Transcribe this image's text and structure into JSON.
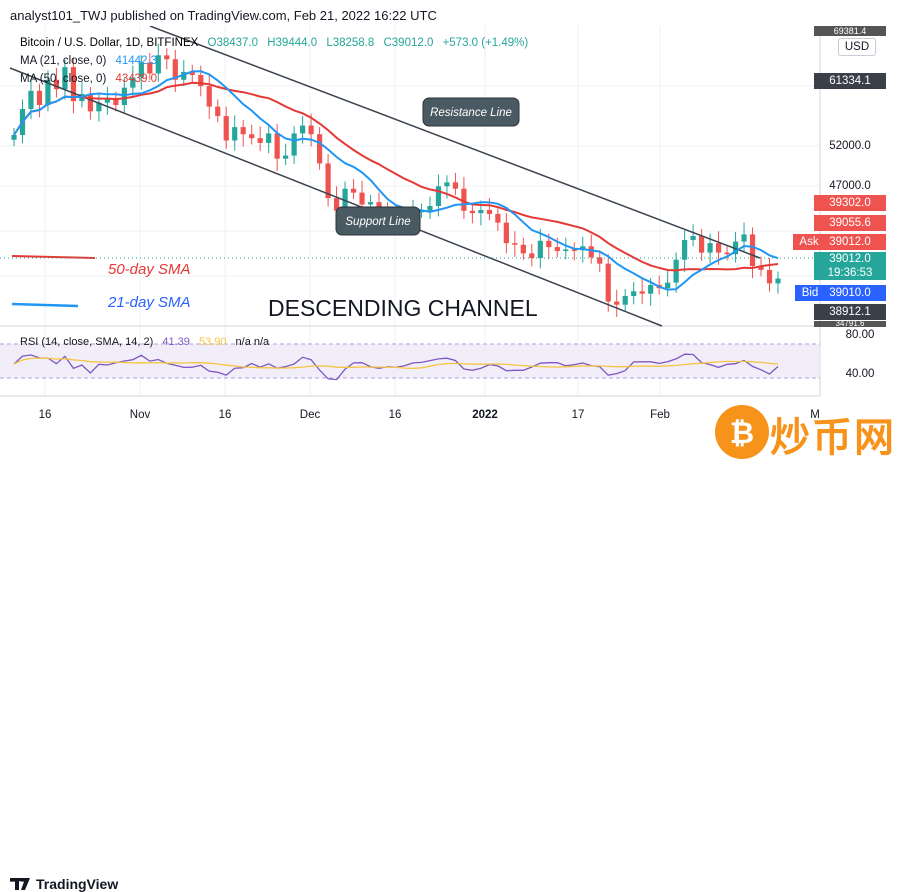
{
  "header": {
    "publisher": "analyst101_TWJ published on TradingView.com, Feb 21, 2022 16:22 UTC"
  },
  "legend": {
    "symbol": "Bitcoin / U.S. Dollar, 1D, BITFINEX",
    "open": "O38437.0",
    "high": "H39444.0",
    "low": "L38258.8",
    "close": "C39012.0",
    "change": "+573.0 (+1.49%)",
    "ma21_label": "MA (21, close, 0)",
    "ma21_value": "41442.3",
    "ma50_label": "MA (50, close, 0)",
    "ma50_value": "43439.0"
  },
  "price_axis": {
    "currency_button": "USD",
    "top_partial": "69381.4",
    "labels": [
      "61334.1",
      "52000.0",
      "47000.0",
      "39302.0",
      "39055.6",
      "39012.0",
      "39012.0",
      "19:36:53",
      "39010.0",
      "38912.1"
    ],
    "ask": "Ask",
    "bid": "Bid",
    "bottom_partial": "34791.6"
  },
  "annotations": {
    "resistance": "Resistance Line",
    "support": "Support Line",
    "sma50": "50-day SMA",
    "sma21": "21-day SMA",
    "channel": "DESCENDING CHANNEL"
  },
  "rsi": {
    "label": "RSI (14, close, SMA, 14, 2)",
    "value1": "41.39",
    "value2": "53.90",
    "na": "n/a n/a",
    "axis": [
      "80.00",
      "40.00"
    ]
  },
  "time_axis": [
    "16",
    "Nov",
    "16",
    "Dec",
    "16",
    "2022",
    "17",
    "Feb",
    "M"
  ],
  "footer": {
    "brand": "TradingView"
  },
  "watermark": {
    "text": "炒币网"
  },
  "colors": {
    "up": "#26a69a",
    "down": "#ef5350",
    "ma21": "#2196f3",
    "ma50": "#e53935",
    "rsi": "#7e57c2",
    "rsi_sma": "#f4c542",
    "ask": "#ef5350",
    "bid": "#2962ff"
  },
  "chart_data": {
    "type": "candlestick",
    "title": "Bitcoin / U.S. Dollar, 1D, BITFINEX",
    "price_range": [
      33000,
      70000
    ],
    "candles_close": [
      57200,
      60500,
      62800,
      61000,
      64200,
      63000,
      65800,
      61500,
      62400,
      60200,
      61300,
      61800,
      61000,
      63200,
      64500,
      66400,
      65000,
      67300,
      66800,
      64200,
      65200,
      64800,
      63400,
      60800,
      59600,
      56500,
      58200,
      57300,
      56800,
      56200,
      57400,
      54200,
      54600,
      57400,
      58400,
      57300,
      53600,
      49200,
      47600,
      50400,
      49900,
      48400,
      48700,
      47200,
      46800,
      46600,
      46100,
      47500,
      47600,
      48200,
      50700,
      51200,
      50400,
      47600,
      47300,
      47700,
      47200,
      46100,
      43500,
      43300,
      42200,
      41600,
      43800,
      43000,
      42500,
      42700,
      42600,
      43100,
      41700,
      40900,
      36100,
      35700,
      36800,
      37400,
      37100,
      38200,
      37800,
      38500,
      41400,
      43900,
      44400,
      42300,
      43500,
      42300,
      42100,
      43700,
      44600,
      40600,
      40100,
      38400,
      39012
    ],
    "ma21_series_shape": "declining from ~62000 to ~37000 then rising to ~41442",
    "ma50_series_shape": "declining from ~60000 to ~43439",
    "rsi_range": [
      20,
      80
    ]
  }
}
